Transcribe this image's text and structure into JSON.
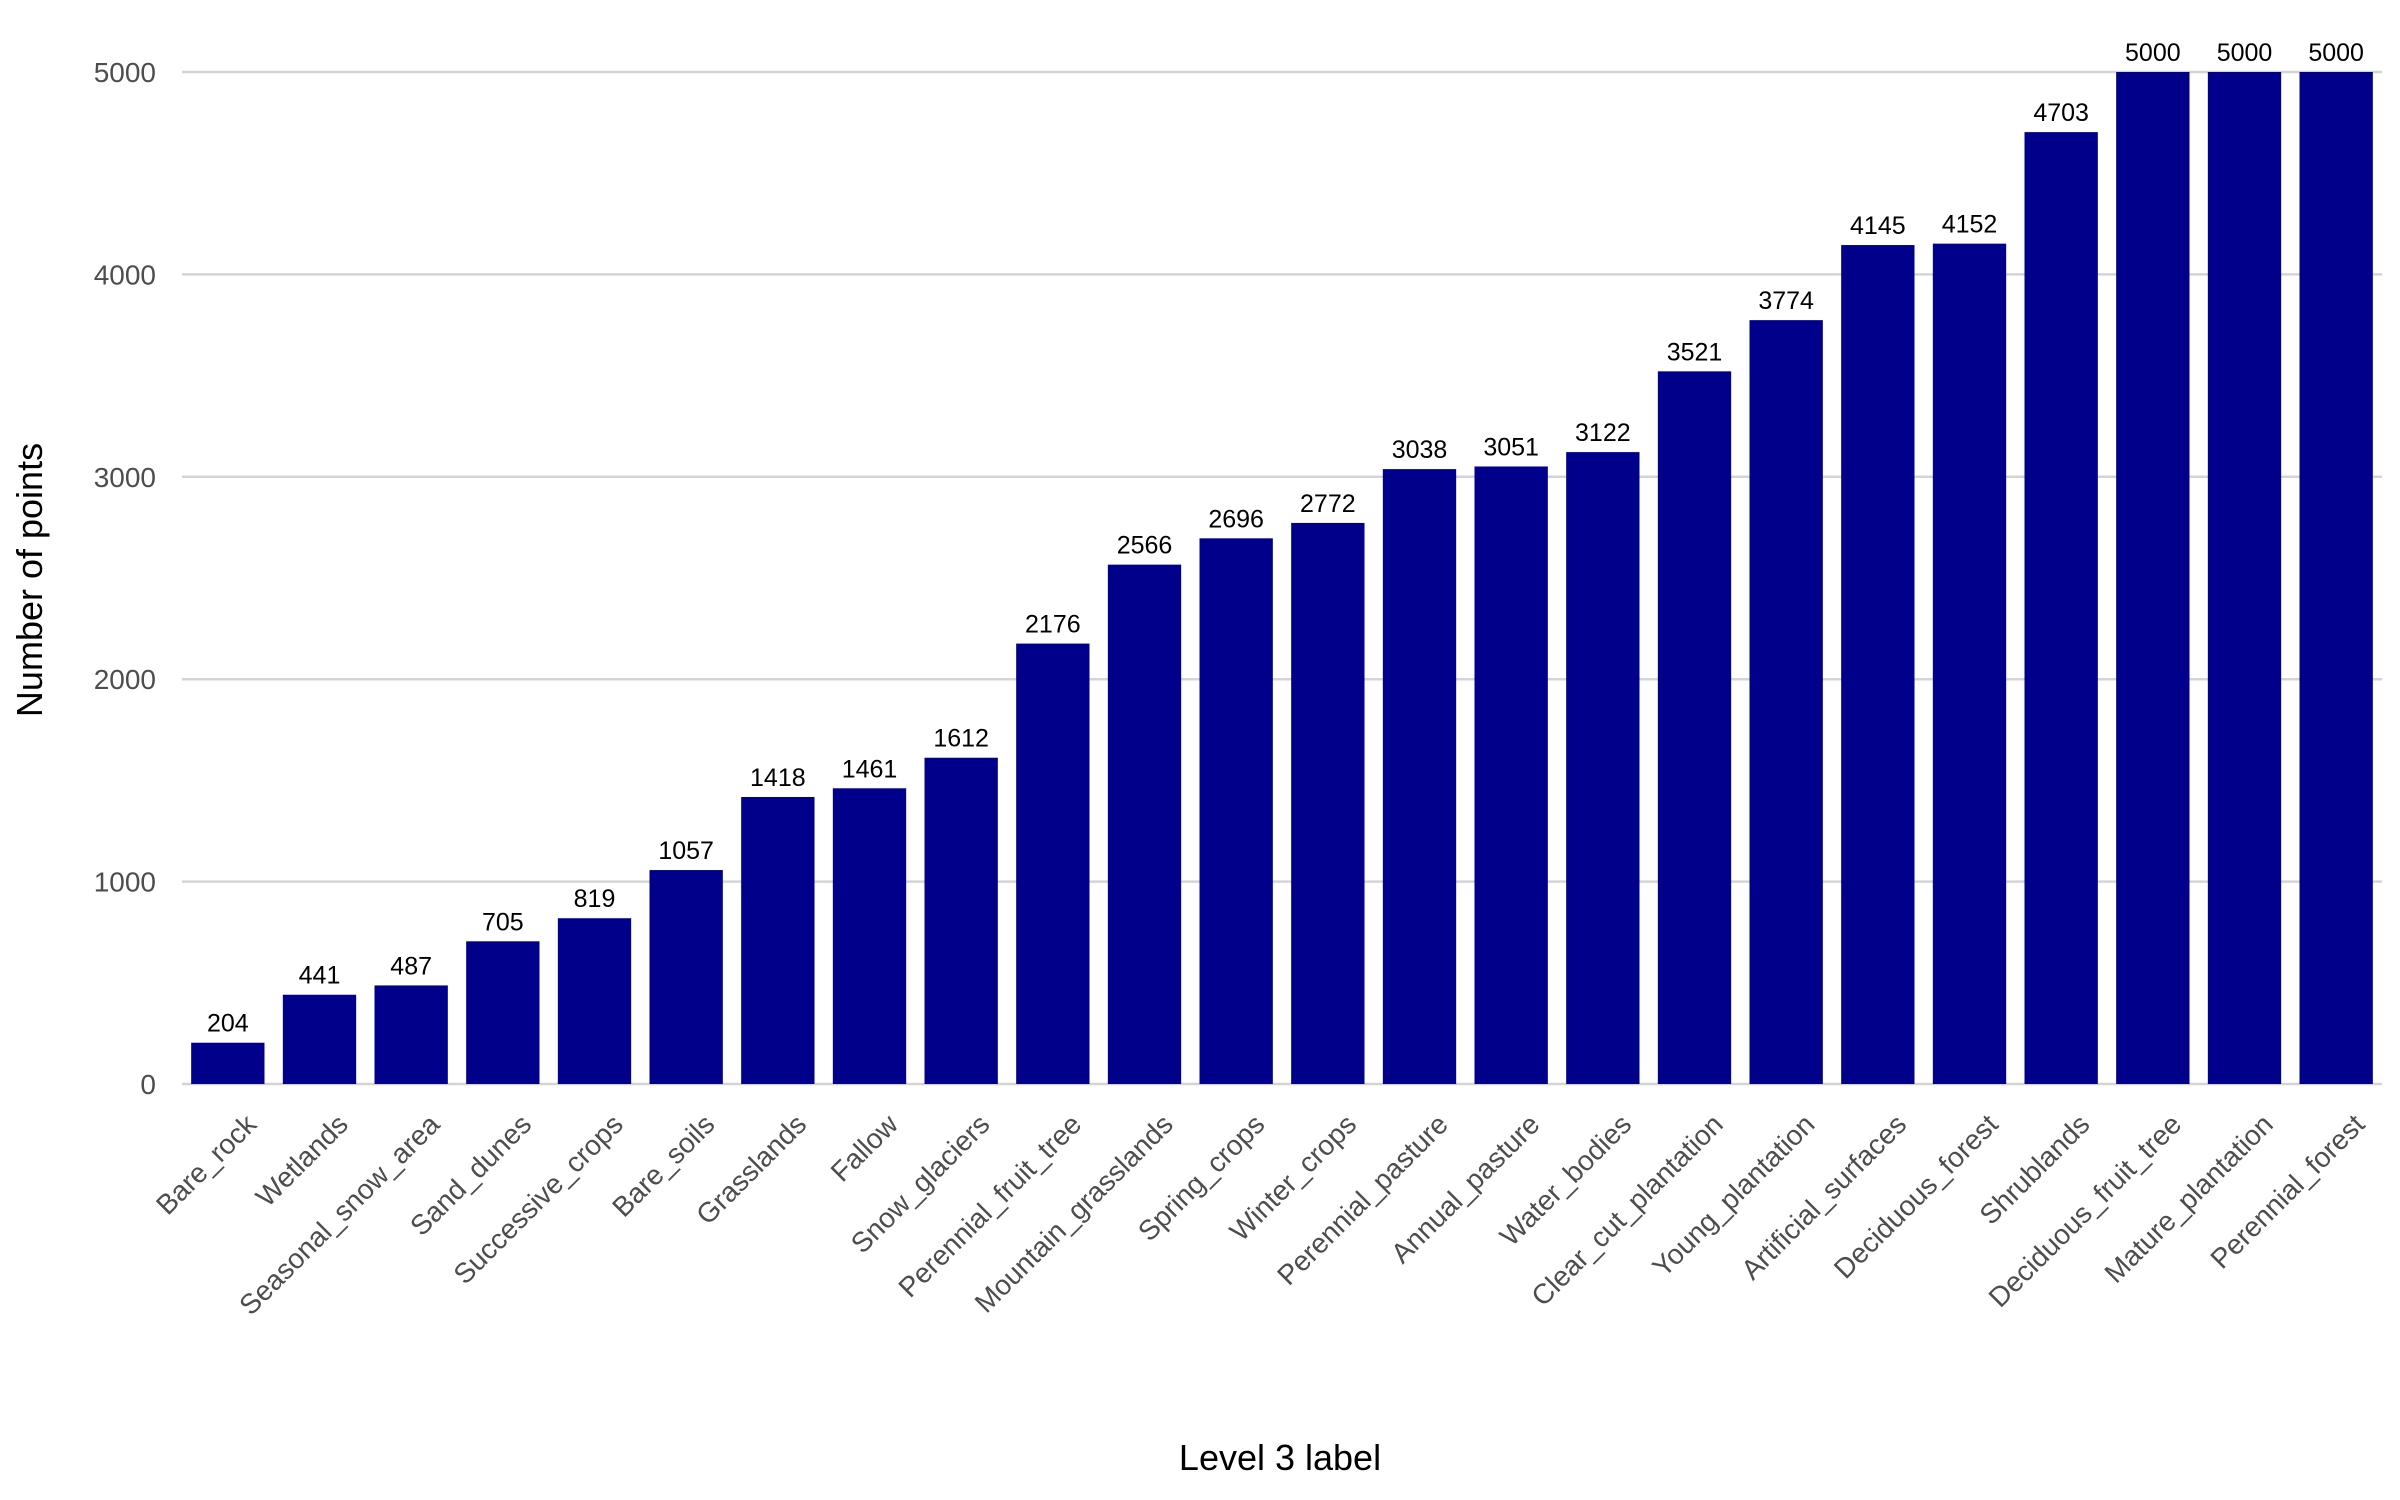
{
  "chart_data": {
    "type": "bar",
    "title": "",
    "xlabel": "Level 3 label",
    "ylabel": "Number of points",
    "ylim": [
      0,
      5000
    ],
    "yticks": [
      0,
      1000,
      2000,
      3000,
      4000,
      5000
    ],
    "grid": true,
    "legend": "none",
    "bar_color": "#00008b",
    "categories": [
      "Bare_rock",
      "Wetlands",
      "Seasonal_snow_area",
      "Sand_dunes",
      "Successive_crops",
      "Bare_soils",
      "Grasslands",
      "Fallow",
      "Snow_glaciers",
      "Perennial_fruit_tree",
      "Mountain_grasslands",
      "Spring_crops",
      "Winter_crops",
      "Perennial_pasture",
      "Annual_pasture",
      "Water_bodies",
      "Clear_cut_plantation",
      "Young_plantation",
      "Artificial_surfaces",
      "Deciduous_forest",
      "Shrublands",
      "Deciduous_fruit_tree",
      "Mature_plantation",
      "Perennial_forest"
    ],
    "values": [
      204,
      441,
      487,
      705,
      819,
      1057,
      1418,
      1461,
      1612,
      2176,
      2566,
      2696,
      2772,
      3038,
      3051,
      3122,
      3521,
      3774,
      4145,
      4152,
      4703,
      5000,
      5000,
      5000
    ]
  }
}
